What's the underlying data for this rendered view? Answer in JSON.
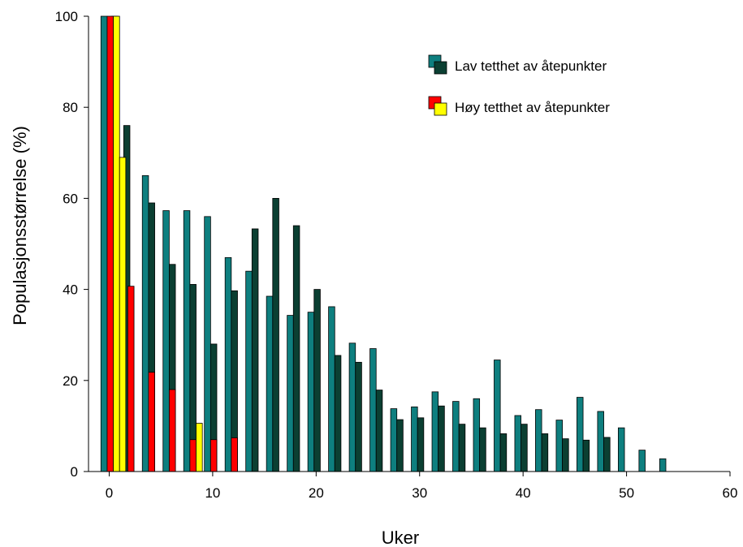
{
  "chart_data": {
    "type": "bar",
    "xlabel": "Uker",
    "ylabel": "Populasjonsstørrelse (%)",
    "xlim": [
      -2,
      60
    ],
    "ylim": [
      0,
      100
    ],
    "xticks": [
      0,
      10,
      20,
      30,
      40,
      50,
      60
    ],
    "yticks": [
      0,
      20,
      40,
      60,
      80,
      100
    ],
    "xtick_labels": [
      "0",
      "10",
      "20",
      "30",
      "40",
      "50",
      "60"
    ],
    "ytick_labels": [
      "0",
      "20",
      "40",
      "60",
      "80",
      "100"
    ],
    "grid": false,
    "legend_position": "top-right",
    "legend": [
      {
        "label": "Lav tetthet av åtepunkter",
        "colors": [
          "#0e7f7f",
          "#0b3f32"
        ]
      },
      {
        "label": "Høy tetthet av åtepunkter",
        "colors": [
          "#ff0000",
          "#ffff00"
        ]
      }
    ],
    "series": [
      {
        "color": "#0e7f7f",
        "x": [
          -0.5,
          3.5,
          5.5,
          7.5,
          9.5,
          11.5,
          13.5,
          15.5,
          17.5,
          19.5,
          21.5,
          23.5,
          25.5,
          27.5,
          29.5,
          31.5,
          33.5,
          35.5,
          37.5,
          39.5,
          41.5,
          43.5,
          45.5,
          47.5,
          49.5,
          51.5,
          53.5
        ],
        "values": [
          100,
          65,
          57.3,
          57.3,
          56,
          47,
          44,
          38.5,
          34.3,
          35,
          36.2,
          28.2,
          27,
          13.8,
          14.2,
          17.5,
          15.4,
          16,
          24.5,
          12.3,
          13.6,
          11.3,
          16.3,
          13.2,
          9.6,
          4.7,
          2.8
        ]
      },
      {
        "color": "#0b3f32",
        "x": [
          0.5,
          1.7,
          4.1,
          6.1,
          8.1,
          10.1,
          12.1,
          14.1,
          16.1,
          18.1,
          20.1,
          22.1,
          24.1,
          26.1,
          28.1,
          30.1,
          32.1,
          34.1,
          36.1,
          38.1,
          40.1,
          42.1,
          44.1,
          46.1,
          48.1
        ],
        "values": [
          100,
          76,
          59,
          45.5,
          41.1,
          28,
          39.7,
          53.3,
          60,
          54,
          40,
          25.5,
          24,
          17.9,
          11.4,
          11.8,
          14.4,
          10.4,
          9.6,
          8.3,
          10.4,
          8.3,
          7.2,
          6.9,
          7.5
        ]
      },
      {
        "color": "#ff0000",
        "x": [
          0.1,
          2.1,
          4.1,
          6.1,
          8.1,
          10.1,
          12.1
        ],
        "values": [
          100,
          40.7,
          21.8,
          18,
          7,
          7,
          7.4
        ]
      },
      {
        "color": "#ffff00",
        "x": [
          0.7,
          1.3,
          8.7
        ],
        "values": [
          100,
          69,
          10.6
        ]
      }
    ]
  }
}
